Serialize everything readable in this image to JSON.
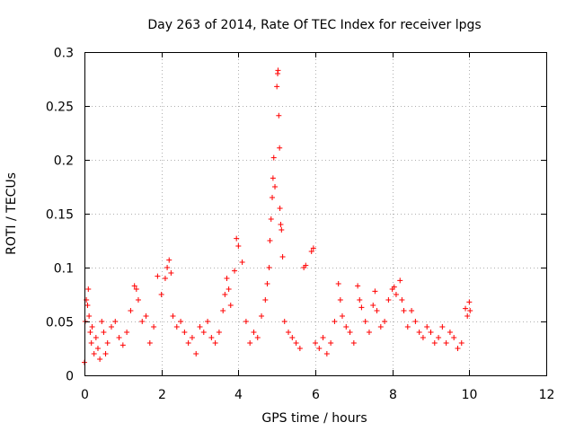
{
  "chart_data": {
    "type": "scatter",
    "title": "Day 263 of 2014, Rate Of TEC Index for receiver lpgs",
    "xlabel": "GPS time / hours",
    "ylabel": "ROTI / TECUs",
    "xlim": [
      0,
      12
    ],
    "ylim": [
      0,
      0.3
    ],
    "xticks": [
      "0",
      "2",
      "4",
      "6",
      "8",
      "10",
      "12"
    ],
    "yticks": [
      "0",
      "0.05",
      "0.1",
      "0.15",
      "0.2",
      "0.25",
      "0.3"
    ],
    "grid": true,
    "marker": "plus",
    "color": "#ff0000",
    "series": [
      {
        "name": "ROTI",
        "points": [
          [
            0.0,
            0.012
          ],
          [
            0.02,
            0.05
          ],
          [
            0.05,
            0.07
          ],
          [
            0.08,
            0.065
          ],
          [
            0.1,
            0.08
          ],
          [
            0.12,
            0.055
          ],
          [
            0.15,
            0.04
          ],
          [
            0.18,
            0.03
          ],
          [
            0.2,
            0.045
          ],
          [
            0.25,
            0.02
          ],
          [
            0.3,
            0.035
          ],
          [
            0.35,
            0.025
          ],
          [
            0.4,
            0.015
          ],
          [
            0.45,
            0.05
          ],
          [
            0.5,
            0.04
          ],
          [
            0.55,
            0.02
          ],
          [
            0.6,
            0.03
          ],
          [
            0.7,
            0.045
          ],
          [
            0.8,
            0.05
          ],
          [
            0.9,
            0.035
          ],
          [
            1.0,
            0.028
          ],
          [
            1.1,
            0.04
          ],
          [
            1.2,
            0.06
          ],
          [
            1.3,
            0.083
          ],
          [
            1.35,
            0.08
          ],
          [
            1.4,
            0.07
          ],
          [
            1.5,
            0.05
          ],
          [
            1.6,
            0.055
          ],
          [
            1.7,
            0.03
          ],
          [
            1.8,
            0.045
          ],
          [
            1.9,
            0.092
          ],
          [
            2.0,
            0.075
          ],
          [
            2.1,
            0.09
          ],
          [
            2.15,
            0.1
          ],
          [
            2.2,
            0.107
          ],
          [
            2.25,
            0.095
          ],
          [
            2.3,
            0.055
          ],
          [
            2.4,
            0.045
          ],
          [
            2.5,
            0.05
          ],
          [
            2.6,
            0.04
          ],
          [
            2.7,
            0.03
          ],
          [
            2.8,
            0.035
          ],
          [
            2.9,
            0.02
          ],
          [
            3.0,
            0.045
          ],
          [
            3.1,
            0.04
          ],
          [
            3.2,
            0.05
          ],
          [
            3.3,
            0.035
          ],
          [
            3.4,
            0.03
          ],
          [
            3.5,
            0.04
          ],
          [
            3.6,
            0.06
          ],
          [
            3.65,
            0.075
          ],
          [
            3.7,
            0.09
          ],
          [
            3.75,
            0.08
          ],
          [
            3.8,
            0.065
          ],
          [
            3.9,
            0.097
          ],
          [
            3.95,
            0.127
          ],
          [
            4.0,
            0.12
          ],
          [
            4.1,
            0.105
          ],
          [
            4.2,
            0.05
          ],
          [
            4.3,
            0.03
          ],
          [
            4.4,
            0.04
          ],
          [
            4.5,
            0.035
          ],
          [
            4.6,
            0.055
          ],
          [
            4.7,
            0.07
          ],
          [
            4.75,
            0.085
          ],
          [
            4.8,
            0.1
          ],
          [
            4.82,
            0.125
          ],
          [
            4.85,
            0.145
          ],
          [
            4.88,
            0.165
          ],
          [
            4.9,
            0.183
          ],
          [
            4.92,
            0.202
          ],
          [
            4.95,
            0.175
          ],
          [
            5.0,
            0.268
          ],
          [
            5.02,
            0.28
          ],
          [
            5.03,
            0.283
          ],
          [
            5.05,
            0.241
          ],
          [
            5.07,
            0.211
          ],
          [
            5.08,
            0.155
          ],
          [
            5.1,
            0.14
          ],
          [
            5.12,
            0.135
          ],
          [
            5.15,
            0.11
          ],
          [
            5.2,
            0.05
          ],
          [
            5.3,
            0.04
          ],
          [
            5.4,
            0.035
          ],
          [
            5.5,
            0.03
          ],
          [
            5.6,
            0.025
          ],
          [
            5.7,
            0.1
          ],
          [
            5.75,
            0.102
          ],
          [
            5.9,
            0.115
          ],
          [
            5.95,
            0.118
          ],
          [
            6.0,
            0.03
          ],
          [
            6.1,
            0.025
          ],
          [
            6.2,
            0.035
          ],
          [
            6.3,
            0.02
          ],
          [
            6.4,
            0.03
          ],
          [
            6.5,
            0.05
          ],
          [
            6.6,
            0.085
          ],
          [
            6.65,
            0.07
          ],
          [
            6.7,
            0.055
          ],
          [
            6.8,
            0.045
          ],
          [
            6.9,
            0.04
          ],
          [
            7.0,
            0.03
          ],
          [
            7.1,
            0.083
          ],
          [
            7.15,
            0.07
          ],
          [
            7.2,
            0.063
          ],
          [
            7.3,
            0.05
          ],
          [
            7.4,
            0.04
          ],
          [
            7.5,
            0.065
          ],
          [
            7.55,
            0.078
          ],
          [
            7.6,
            0.06
          ],
          [
            7.7,
            0.045
          ],
          [
            7.8,
            0.05
          ],
          [
            7.9,
            0.07
          ],
          [
            8.0,
            0.08
          ],
          [
            8.05,
            0.082
          ],
          [
            8.1,
            0.075
          ],
          [
            8.2,
            0.088
          ],
          [
            8.25,
            0.07
          ],
          [
            8.3,
            0.06
          ],
          [
            8.4,
            0.045
          ],
          [
            8.5,
            0.06
          ],
          [
            8.6,
            0.05
          ],
          [
            8.7,
            0.04
          ],
          [
            8.8,
            0.035
          ],
          [
            8.9,
            0.045
          ],
          [
            9.0,
            0.04
          ],
          [
            9.1,
            0.03
          ],
          [
            9.2,
            0.035
          ],
          [
            9.3,
            0.045
          ],
          [
            9.4,
            0.03
          ],
          [
            9.5,
            0.04
          ],
          [
            9.6,
            0.035
          ],
          [
            9.7,
            0.025
          ],
          [
            9.8,
            0.03
          ],
          [
            9.9,
            0.062
          ],
          [
            9.95,
            0.055
          ],
          [
            10.0,
            0.068
          ],
          [
            10.02,
            0.06
          ]
        ]
      }
    ]
  }
}
